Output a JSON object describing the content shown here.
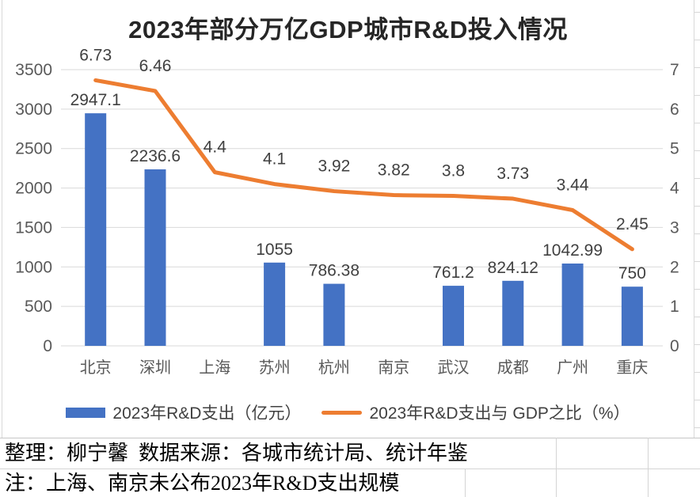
{
  "chart_data": {
    "type": "combo",
    "title": "2023年部分万亿GDP城市R&D投入情况",
    "categories": [
      "北京",
      "深圳",
      "上海",
      "苏州",
      "杭州",
      "南京",
      "武汉",
      "成都",
      "广州",
      "重庆"
    ],
    "series": [
      {
        "name": "2023年R&D支出（亿元）",
        "type": "bar",
        "axis": "left",
        "color": "#4472C4",
        "values": [
          2947.1,
          2236.6,
          null,
          1055,
          786.38,
          null,
          761.2,
          824.12,
          1042.99,
          750
        ],
        "labels": [
          "2947.1",
          "2236.6",
          "",
          "1055",
          "786.38",
          "",
          "761.2",
          "824.12",
          "1042.99",
          "750"
        ]
      },
      {
        "name": "2023年R&D支出与 GDP之比（%）",
        "type": "line",
        "axis": "right",
        "color": "#ED7D31",
        "values": [
          6.73,
          6.46,
          4.4,
          4.1,
          3.92,
          3.82,
          3.8,
          3.73,
          3.44,
          2.45
        ],
        "labels": [
          "6.73",
          "6.46",
          "4.4",
          "4.1",
          "3.92",
          "3.82",
          "3.8",
          "3.73",
          "3.44",
          "2.45"
        ]
      }
    ],
    "left_axis": {
      "min": 0,
      "max": 3500,
      "step": 500,
      "tick_labels": [
        "0",
        "500",
        "1000",
        "1500",
        "2000",
        "2500",
        "3000",
        "3500"
      ]
    },
    "right_axis": {
      "min": 0,
      "max": 7,
      "step": 1,
      "tick_labels": [
        "0",
        "1",
        "2",
        "3",
        "4",
        "5",
        "6",
        "7"
      ]
    },
    "grid": true,
    "legend_position": "bottom"
  },
  "footer": {
    "line1": "整理：柳宁馨  数据来源：各城市统计局、统计年鉴",
    "line2": "注：上海、南京未公布2023年R&D支出规模"
  },
  "colors": {
    "bar": "#4472C4",
    "line": "#ED7D31",
    "gridline": "#D9D9D9",
    "axis_text": "#595959",
    "category_text": "#595959",
    "data_label_text": "#404040",
    "legend_text": "#404040",
    "title_text": "#262626",
    "sheet_grid": "#D4D4D4",
    "chart_border": "#D9D9D9"
  }
}
